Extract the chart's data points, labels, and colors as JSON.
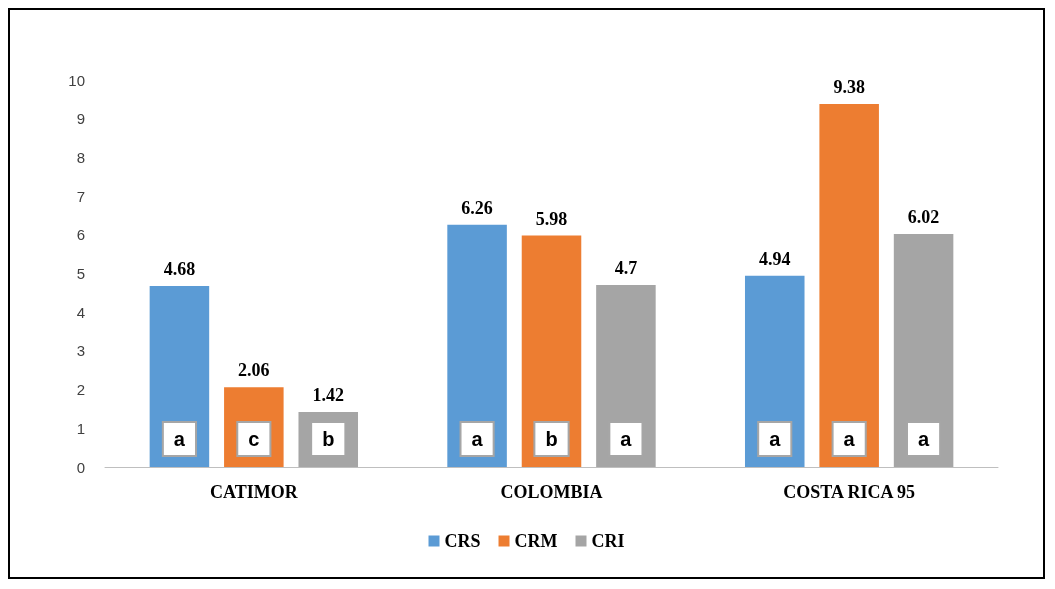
{
  "chart_data": {
    "type": "bar",
    "categories": [
      "CATIMOR",
      "COLOMBIA",
      "COSTA RICA 95"
    ],
    "series": [
      {
        "name": "CRS",
        "color": "#5b9bd5",
        "values": [
          4.68,
          6.26,
          4.94
        ]
      },
      {
        "name": "CRM",
        "color": "#ed7d31",
        "values": [
          2.06,
          5.98,
          9.38
        ]
      },
      {
        "name": "CRI",
        "color": "#a5a5a5",
        "values": [
          1.42,
          4.7,
          6.02
        ]
      }
    ],
    "ylim": [
      0,
      10
    ],
    "yticks": [
      0,
      1,
      2,
      3,
      4,
      5,
      6,
      7,
      8,
      9,
      10
    ],
    "grid": false,
    "legend": "bottom",
    "data_labels": true,
    "annotations": [
      "a",
      "c",
      "b",
      "a",
      "b",
      "a",
      "a",
      "a",
      "a"
    ]
  }
}
